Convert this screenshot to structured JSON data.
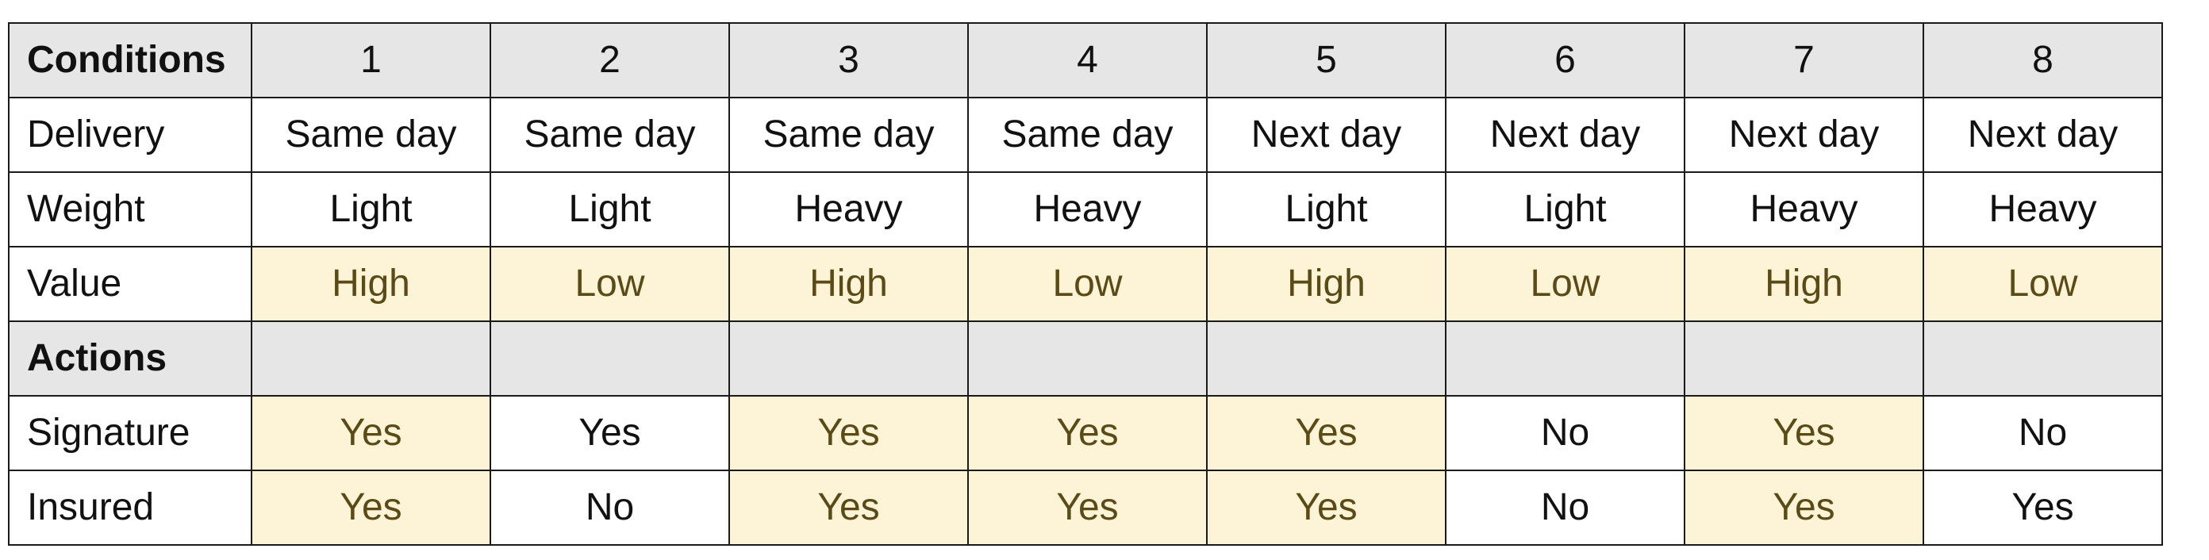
{
  "table": {
    "corner_label": "Conditions",
    "columns": [
      "1",
      "2",
      "3",
      "4",
      "5",
      "6",
      "7",
      "8"
    ],
    "rows": [
      {
        "label": "Delivery",
        "section_header": false,
        "cells": [
          {
            "text": "Same day",
            "highlight": false
          },
          {
            "text": "Same day",
            "highlight": false
          },
          {
            "text": "Same day",
            "highlight": false
          },
          {
            "text": "Same day",
            "highlight": false
          },
          {
            "text": "Next day",
            "highlight": false
          },
          {
            "text": "Next day",
            "highlight": false
          },
          {
            "text": "Next day",
            "highlight": false
          },
          {
            "text": "Next day",
            "highlight": false
          }
        ]
      },
      {
        "label": "Weight",
        "section_header": false,
        "cells": [
          {
            "text": "Light",
            "highlight": false
          },
          {
            "text": "Light",
            "highlight": false
          },
          {
            "text": "Heavy",
            "highlight": false
          },
          {
            "text": "Heavy",
            "highlight": false
          },
          {
            "text": "Light",
            "highlight": false
          },
          {
            "text": "Light",
            "highlight": false
          },
          {
            "text": "Heavy",
            "highlight": false
          },
          {
            "text": "Heavy",
            "highlight": false
          }
        ]
      },
      {
        "label": "Value",
        "section_header": false,
        "cells": [
          {
            "text": "High",
            "highlight": true
          },
          {
            "text": "Low",
            "highlight": true
          },
          {
            "text": "High",
            "highlight": true
          },
          {
            "text": "Low",
            "highlight": true
          },
          {
            "text": "High",
            "highlight": true
          },
          {
            "text": "Low",
            "highlight": true
          },
          {
            "text": "High",
            "highlight": true
          },
          {
            "text": "Low",
            "highlight": true
          }
        ]
      },
      {
        "label": "Actions",
        "section_header": true,
        "cells": [
          {
            "text": "",
            "highlight": false
          },
          {
            "text": "",
            "highlight": false
          },
          {
            "text": "",
            "highlight": false
          },
          {
            "text": "",
            "highlight": false
          },
          {
            "text": "",
            "highlight": false
          },
          {
            "text": "",
            "highlight": false
          },
          {
            "text": "",
            "highlight": false
          },
          {
            "text": "",
            "highlight": false
          }
        ]
      },
      {
        "label": "Signature",
        "section_header": false,
        "cells": [
          {
            "text": "Yes",
            "highlight": true
          },
          {
            "text": "Yes",
            "highlight": false
          },
          {
            "text": "Yes",
            "highlight": true
          },
          {
            "text": "Yes",
            "highlight": true
          },
          {
            "text": "Yes",
            "highlight": true
          },
          {
            "text": "No",
            "highlight": false
          },
          {
            "text": "Yes",
            "highlight": true
          },
          {
            "text": "No",
            "highlight": false
          }
        ]
      },
      {
        "label": "Insured",
        "section_header": false,
        "cells": [
          {
            "text": "Yes",
            "highlight": true
          },
          {
            "text": "No",
            "highlight": false
          },
          {
            "text": "Yes",
            "highlight": true
          },
          {
            "text": "Yes",
            "highlight": true
          },
          {
            "text": "Yes",
            "highlight": true
          },
          {
            "text": "No",
            "highlight": false
          },
          {
            "text": "Yes",
            "highlight": true
          },
          {
            "text": "Yes",
            "highlight": false
          }
        ]
      }
    ]
  },
  "colors": {
    "header_fill": "#e6e6e6",
    "highlight_fill": "#fdf3d6",
    "highlight_text": "#5a4a16",
    "border": "#1a1a1a",
    "text": "#111111"
  }
}
